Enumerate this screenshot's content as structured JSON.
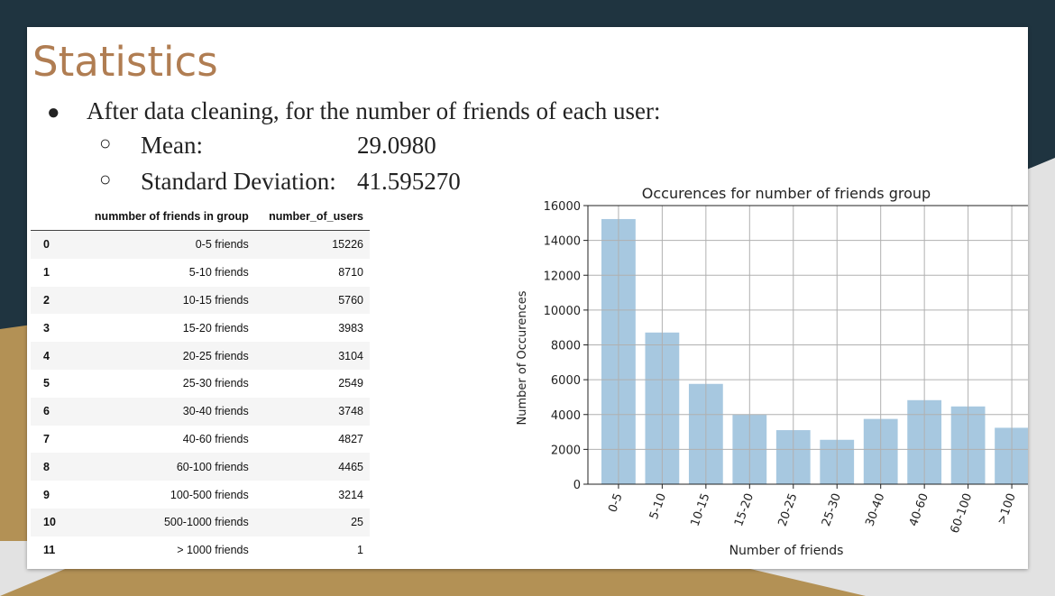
{
  "slide": {
    "title": "Statistics",
    "bullet_marker": "●",
    "sub_marker": "○",
    "bullet": "After data cleaning, for the number of friends of each user:",
    "mean_label": "Mean:",
    "mean_value": "29.0980",
    "std_label": "Standard Deviation:",
    "std_value": "41.595270"
  },
  "table": {
    "headers": [
      "",
      "nummber of friends in group",
      "number_of_users"
    ],
    "rows": [
      [
        "0",
        "0-5 friends",
        "15226"
      ],
      [
        "1",
        "5-10 friends",
        "8710"
      ],
      [
        "2",
        "10-15 friends",
        "5760"
      ],
      [
        "3",
        "15-20 friends",
        "3983"
      ],
      [
        "4",
        "20-25 friends",
        "3104"
      ],
      [
        "5",
        "25-30 friends",
        "2549"
      ],
      [
        "6",
        "30-40 friends",
        "3748"
      ],
      [
        "7",
        "40-60 friends",
        "4827"
      ],
      [
        "8",
        "60-100 friends",
        "4465"
      ],
      [
        "9",
        "100-500 friends",
        "3214"
      ],
      [
        "10",
        "500-1000 friends",
        "25"
      ],
      [
        "11",
        "> 1000 friends",
        "1"
      ]
    ]
  },
  "chart_data": {
    "type": "bar",
    "title": "Occurences for number of friends group",
    "xlabel": "Number of friends",
    "ylabel": "Number of Occurences",
    "categories": [
      "0-5",
      "5-10",
      "10-15",
      "15-20",
      "20-25",
      "25-30",
      "30-40",
      "40-60",
      "60-100",
      ">100"
    ],
    "values": [
      15226,
      8710,
      5760,
      3983,
      3104,
      2549,
      3748,
      4827,
      4465,
      3240
    ],
    "ylim": [
      0,
      16000
    ],
    "yticks": [
      0,
      2000,
      4000,
      6000,
      8000,
      10000,
      12000,
      14000,
      16000
    ],
    "grid": true,
    "bar_color": "#a7c8e0"
  }
}
